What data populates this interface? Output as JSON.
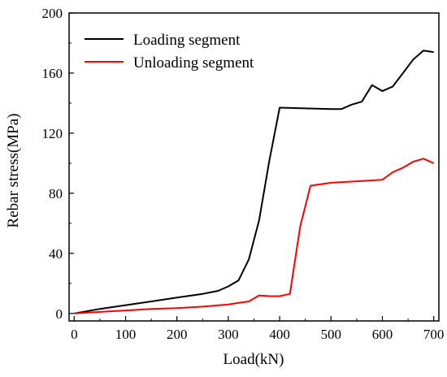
{
  "chart_data": {
    "type": "line",
    "title": "",
    "xlabel": "Load(kN)",
    "ylabel": "Rebar stress(MPa)",
    "xlim": [
      -10,
      710
    ],
    "ylim": [
      -5,
      200
    ],
    "xticks": [
      0,
      100,
      200,
      300,
      400,
      500,
      600,
      700
    ],
    "yticks": [
      0,
      40,
      80,
      120,
      160,
      200
    ],
    "grid": false,
    "legend_position": "top-left",
    "series": [
      {
        "name": "Loading segment",
        "color": "#000000",
        "x": [
          0,
          50,
          100,
          150,
          200,
          250,
          280,
          300,
          320,
          340,
          360,
          380,
          400,
          450,
          500,
          520,
          540,
          560,
          580,
          600,
          620,
          640,
          660,
          680,
          700
        ],
        "y": [
          0,
          3,
          5.5,
          8,
          10.5,
          13,
          15,
          18,
          22,
          36,
          62,
          102,
          137,
          136.5,
          136,
          136,
          139,
          141,
          152,
          148,
          151,
          160,
          169,
          175,
          174
        ]
      },
      {
        "name": "Unloading segment",
        "color": "#ff0000",
        "x": [
          0,
          50,
          100,
          150,
          200,
          250,
          300,
          320,
          340,
          360,
          380,
          400,
          420,
          440,
          460,
          480,
          500,
          550,
          600,
          620,
          640,
          660,
          680,
          700
        ],
        "y": [
          0,
          1,
          2,
          3,
          3.5,
          4.5,
          6,
          7,
          8,
          12,
          11.5,
          11.5,
          13,
          58,
          85,
          86,
          87,
          88,
          89,
          94,
          97,
          101,
          103,
          100
        ]
      }
    ]
  }
}
